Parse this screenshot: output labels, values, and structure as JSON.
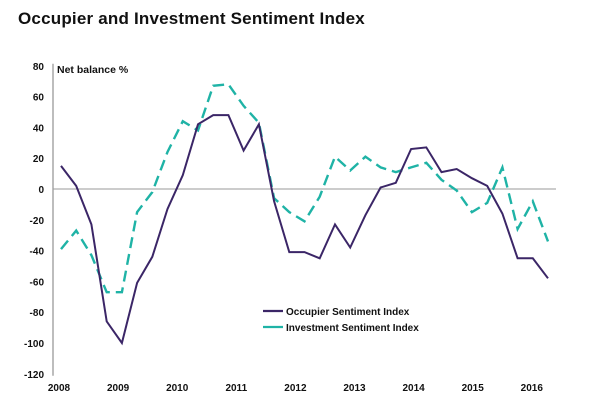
{
  "chart_data": {
    "type": "line",
    "title": "Occupier and Investment Sentiment Index",
    "xlabel": "",
    "ylabel": "Net balance %",
    "ylim": [
      -120,
      80
    ],
    "yticks": [
      80,
      60,
      40,
      20,
      0,
      -20,
      -40,
      -60,
      -80,
      -100,
      -120
    ],
    "x_tick_labels": [
      "2008",
      "2009",
      "2010",
      "2011",
      "2012",
      "2013",
      "2014",
      "2015",
      "2016"
    ],
    "x_frequency": "quarterly",
    "grid": false,
    "zero_line": true,
    "legend_position": "bottom-center",
    "colors": {
      "occupier": "#3b2667",
      "investment": "#1fb3a6",
      "axis": "#bdbdbd",
      "zero_line": "#9a9a9a"
    },
    "series": [
      {
        "name": "Occupier Sentiment Index",
        "style": "solid",
        "values": [
          15,
          2,
          -23,
          -86,
          -100,
          -61,
          -44,
          -13,
          9,
          42,
          48,
          48,
          25,
          42,
          -8,
          -41,
          -41,
          -45,
          -23,
          -38,
          -17,
          1,
          4,
          26,
          27,
          11,
          13,
          7,
          2,
          -16,
          -45,
          -45,
          -58
        ]
      },
      {
        "name": "Investment Sentiment Index",
        "style": "dashed",
        "values": [
          -39,
          -27,
          -43,
          -67,
          -67,
          -15,
          -2,
          24,
          44,
          38,
          67,
          68,
          54,
          43,
          -6,
          -15,
          -21,
          -5,
          21,
          12,
          21,
          14,
          11,
          14,
          17,
          6,
          -1,
          -15,
          -9,
          14,
          -26,
          -8,
          -34
        ]
      }
    ]
  }
}
